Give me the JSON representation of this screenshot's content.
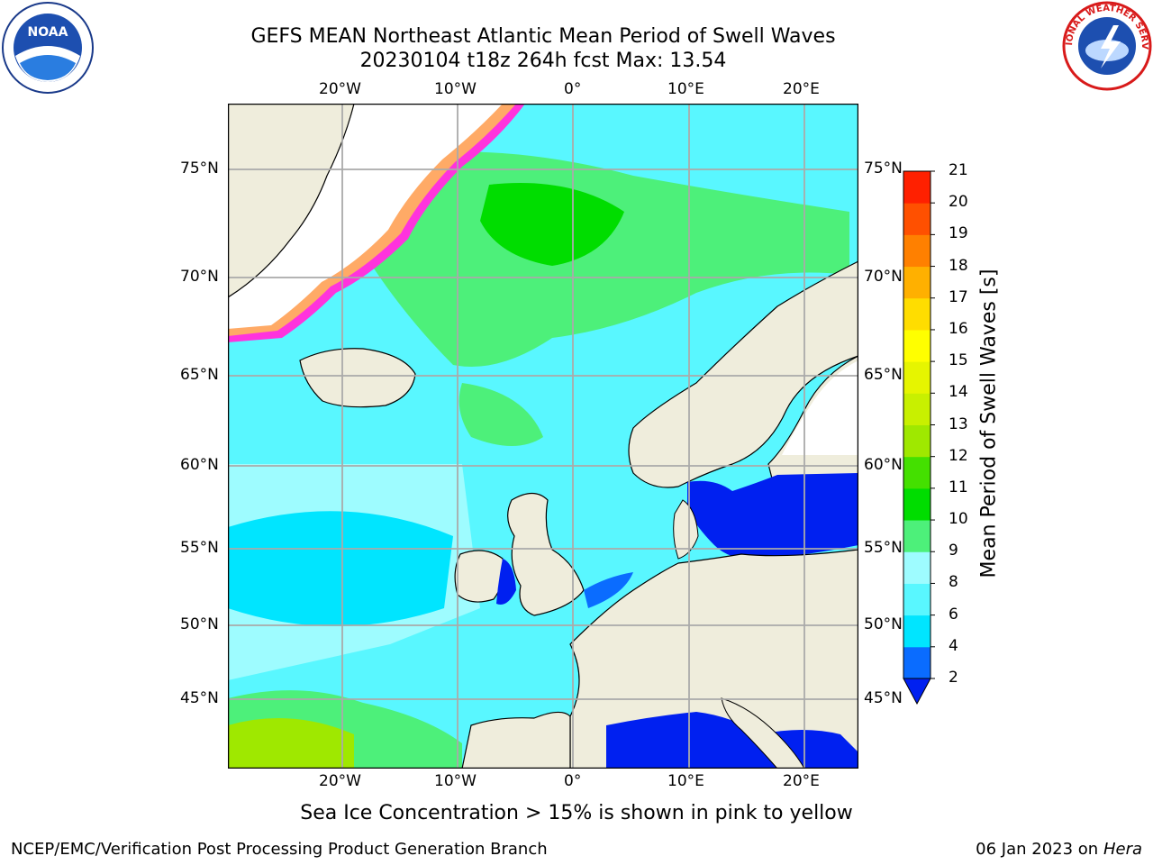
{
  "title_line1": "GEFS MEAN Northeast Atlantic Mean Period of Swell Waves",
  "title_line2": "20230104 t18z 264h fcst   Max: 13.54",
  "lon_ticks": [
    "20°W",
    "10°W",
    "0°",
    "10°E",
    "20°E"
  ],
  "lat_ticks_left": [
    "75°N",
    "70°N",
    "65°N",
    "60°N",
    "55°N",
    "50°N",
    "45°N"
  ],
  "lat_ticks_right": [
    "75°N",
    "70°N",
    "65°N",
    "60°N",
    "55°N",
    "50°N",
    "45°N"
  ],
  "colorbar": {
    "title": "Mean Period of Swell Waves [s]",
    "levels": [
      "2",
      "4",
      "6",
      "8",
      "9",
      "10",
      "11",
      "12",
      "13",
      "14",
      "15",
      "16",
      "17",
      "18",
      "19",
      "20",
      "21"
    ],
    "colors": [
      "#0a6cff",
      "#00e5ff",
      "#59f7ff",
      "#9efcff",
      "#4df07a",
      "#00dd00",
      "#44e000",
      "#9fe800",
      "#c8f000",
      "#e6f500",
      "#ffff00",
      "#ffdd00",
      "#ffb000",
      "#ff8000",
      "#ff5000",
      "#ff2000"
    ],
    "extend_color": "#0020f0"
  },
  "ice_note": "Sea Ice Concentration > 15% is shown in pink to yellow",
  "footer_left": "NCEP/EMC/Verification Post Processing Product Generation Branch",
  "footer_right_date": "06 Jan 2023 on ",
  "footer_right_host": "Hera",
  "logos": {
    "noaa_text": "NOAA",
    "nws_text": "NATIONAL WEATHER SERVICE"
  },
  "colors": {
    "land": "#efeddc",
    "ocean_main": "#00e5ff",
    "ocean_light": "#9efcff",
    "green": "#4df07a",
    "ice_pink": "#ff33dd",
    "baltic": "#0020f0"
  }
}
